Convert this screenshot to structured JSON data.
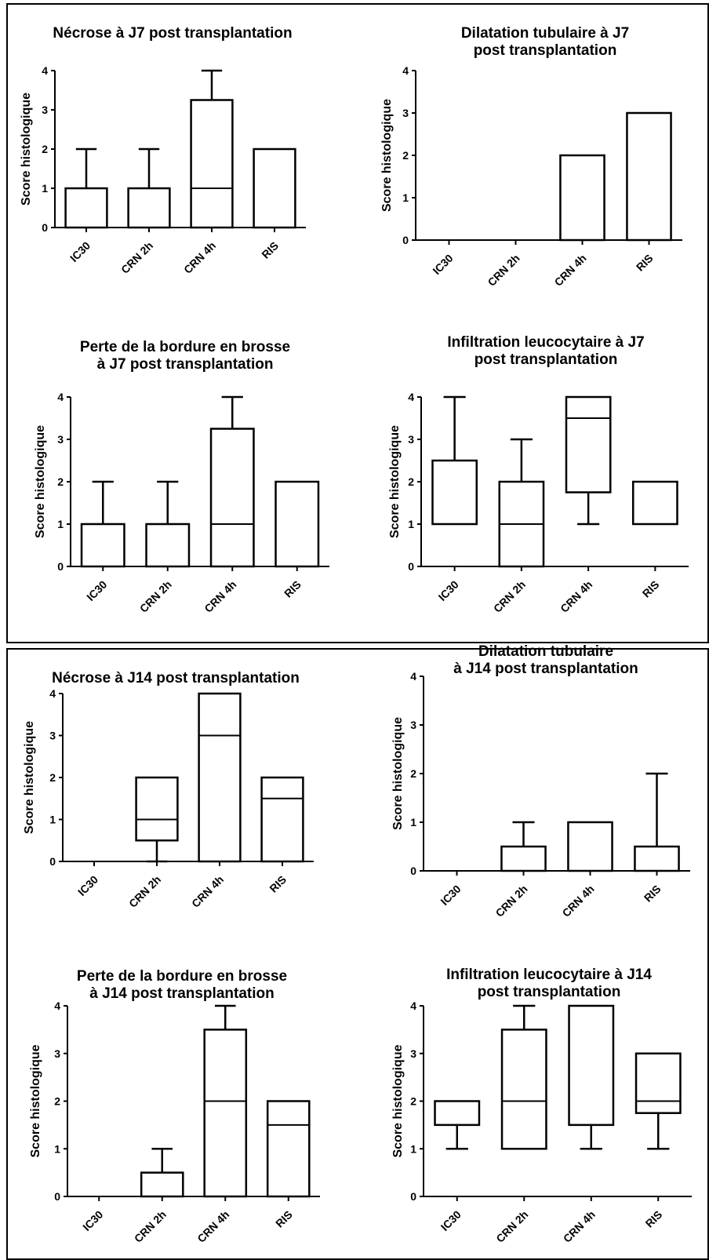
{
  "chart_data": [
    {
      "type": "box",
      "title": [
        "Nécrose à J7 post transplantation"
      ],
      "ylabel": "Score histologique",
      "ylim": [
        0,
        4
      ],
      "yticks": [
        "0",
        "1",
        "2",
        "3",
        "4"
      ],
      "categories": [
        "IC30",
        "CRN 2h",
        "CRN 4h",
        "RIS"
      ],
      "boxes": [
        {
          "min": 0,
          "q1": 0,
          "median": 1,
          "q3": 1,
          "max": 2
        },
        {
          "min": 0,
          "q1": 0,
          "median": 1,
          "q3": 1,
          "max": 2
        },
        {
          "min": 0,
          "q1": 0,
          "median": 1,
          "q3": 3.25,
          "max": 4
        },
        {
          "min": 0,
          "q1": 0,
          "median": 2,
          "q3": 2,
          "max": 2
        }
      ]
    },
    {
      "type": "box",
      "title": [
        "Dilatation tubulaire à J7",
        "post transplantation"
      ],
      "ylabel": "Score histologique",
      "ylim": [
        0,
        4
      ],
      "yticks": [
        "0",
        "1",
        "2",
        "3",
        "4"
      ],
      "categories": [
        "IC30",
        "CRN 2h",
        "CRN 4h",
        "RIS"
      ],
      "boxes": [
        {
          "min": 0,
          "q1": 0,
          "median": 0,
          "q3": 0,
          "max": 0
        },
        {
          "min": 0,
          "q1": 0,
          "median": 0,
          "q3": 0,
          "max": 0
        },
        {
          "min": 0,
          "q1": 0,
          "median": 2,
          "q3": 2,
          "max": 2
        },
        {
          "min": 0,
          "q1": 0,
          "median": 3,
          "q3": 3,
          "max": 3
        }
      ]
    },
    {
      "type": "box",
      "title": [
        "Perte de la bordure en brosse",
        "à J7 post transplantation"
      ],
      "ylabel": "Score histologique",
      "ylim": [
        0,
        4
      ],
      "yticks": [
        "0",
        "1",
        "2",
        "3",
        "4"
      ],
      "categories": [
        "IC30",
        "CRN 2h",
        "CRN 4h",
        "RIS"
      ],
      "boxes": [
        {
          "min": 0,
          "q1": 0,
          "median": 1,
          "q3": 1,
          "max": 2
        },
        {
          "min": 0,
          "q1": 0,
          "median": 1,
          "q3": 1,
          "max": 2
        },
        {
          "min": 0,
          "q1": 0,
          "median": 1,
          "q3": 3.25,
          "max": 4
        },
        {
          "min": 0,
          "q1": 0,
          "median": 2,
          "q3": 2,
          "max": 2
        }
      ]
    },
    {
      "type": "box",
      "title": [
        "Infiltration leucocytaire à J7",
        "post transplantation"
      ],
      "ylabel": "Score histologique",
      "ylim": [
        0,
        4
      ],
      "yticks": [
        "0",
        "1",
        "2",
        "3",
        "4"
      ],
      "categories": [
        "IC30",
        "CRN 2h",
        "CRN 4h",
        "RIS"
      ],
      "boxes": [
        {
          "min": 1,
          "q1": 1,
          "median": 1,
          "q3": 2.5,
          "max": 4
        },
        {
          "min": 0,
          "q1": 0,
          "median": 1,
          "q3": 2,
          "max": 3
        },
        {
          "min": 1,
          "q1": 1.75,
          "median": 3.5,
          "q3": 4,
          "max": 4
        },
        {
          "min": 1,
          "q1": 1,
          "median": 1,
          "q3": 2,
          "max": 2
        }
      ]
    },
    {
      "type": "box",
      "title": [
        "Nécrose à J14 post transplantation"
      ],
      "ylabel": "Score histologique",
      "ylim": [
        0,
        4
      ],
      "yticks": [
        "0",
        "1",
        "2",
        "3",
        "4"
      ],
      "categories": [
        "IC30",
        "CRN 2h",
        "CRN 4h",
        "RIS"
      ],
      "boxes": [
        {
          "min": 0,
          "q1": 0,
          "median": 0,
          "q3": 0,
          "max": 0
        },
        {
          "min": 0,
          "q1": 0.5,
          "median": 1,
          "q3": 2,
          "max": 2
        },
        {
          "min": 0,
          "q1": 0,
          "median": 3,
          "q3": 4,
          "max": 4
        },
        {
          "min": 0,
          "q1": 0,
          "median": 1.5,
          "q3": 2,
          "max": 2
        }
      ]
    },
    {
      "type": "box",
      "title": [
        "Dilatation tubulaire",
        "à J14 post transplantation"
      ],
      "ylabel": "Score histologique",
      "ylim": [
        0,
        4
      ],
      "yticks": [
        "0",
        "1",
        "2",
        "3",
        "4"
      ],
      "categories": [
        "IC30",
        "CRN 2h",
        "CRN 4h",
        "RIS"
      ],
      "boxes": [
        {
          "min": 0,
          "q1": 0,
          "median": 0,
          "q3": 0,
          "max": 0
        },
        {
          "min": 0,
          "q1": 0,
          "median": 0,
          "q3": 0.5,
          "max": 1
        },
        {
          "min": 0,
          "q1": 0,
          "median": 1,
          "q3": 1,
          "max": 1
        },
        {
          "min": 0,
          "q1": 0,
          "median": 0,
          "q3": 0.5,
          "max": 2
        }
      ]
    },
    {
      "type": "box",
      "title": [
        "Perte de la bordure en brosse",
        "à J14 post transplantation"
      ],
      "ylabel": "Score histologique",
      "ylim": [
        0,
        4
      ],
      "yticks": [
        "0",
        "1",
        "2",
        "3",
        "4"
      ],
      "categories": [
        "IC30",
        "CRN 2h",
        "CRN 4h",
        "RIS"
      ],
      "boxes": [
        {
          "min": 0,
          "q1": 0,
          "median": 0,
          "q3": 0,
          "max": 0
        },
        {
          "min": 0,
          "q1": 0,
          "median": 0,
          "q3": 0.5,
          "max": 1
        },
        {
          "min": 0,
          "q1": 0,
          "median": 2,
          "q3": 3.5,
          "max": 4
        },
        {
          "min": 0,
          "q1": 0,
          "median": 1.5,
          "q3": 2,
          "max": 2
        }
      ]
    },
    {
      "type": "box",
      "title": [
        "Infiltration leucocytaire à J14",
        "post transplantation"
      ],
      "ylabel": "Score histologique",
      "ylim": [
        0,
        4
      ],
      "yticks": [
        "0",
        "1",
        "2",
        "3",
        "4"
      ],
      "categories": [
        "IC30",
        "CRN 2h",
        "CRN 4h",
        "RIS"
      ],
      "boxes": [
        {
          "min": 1,
          "q1": 1.5,
          "median": 1.5,
          "q3": 2,
          "max": 2
        },
        {
          "min": 1,
          "q1": 1,
          "median": 2,
          "q3": 3.5,
          "max": 4
        },
        {
          "min": 1,
          "q1": 1.5,
          "median": 1.5,
          "q3": 4,
          "max": 4
        },
        {
          "min": 1,
          "q1": 1.75,
          "median": 2,
          "q3": 3,
          "max": 3
        }
      ]
    }
  ]
}
